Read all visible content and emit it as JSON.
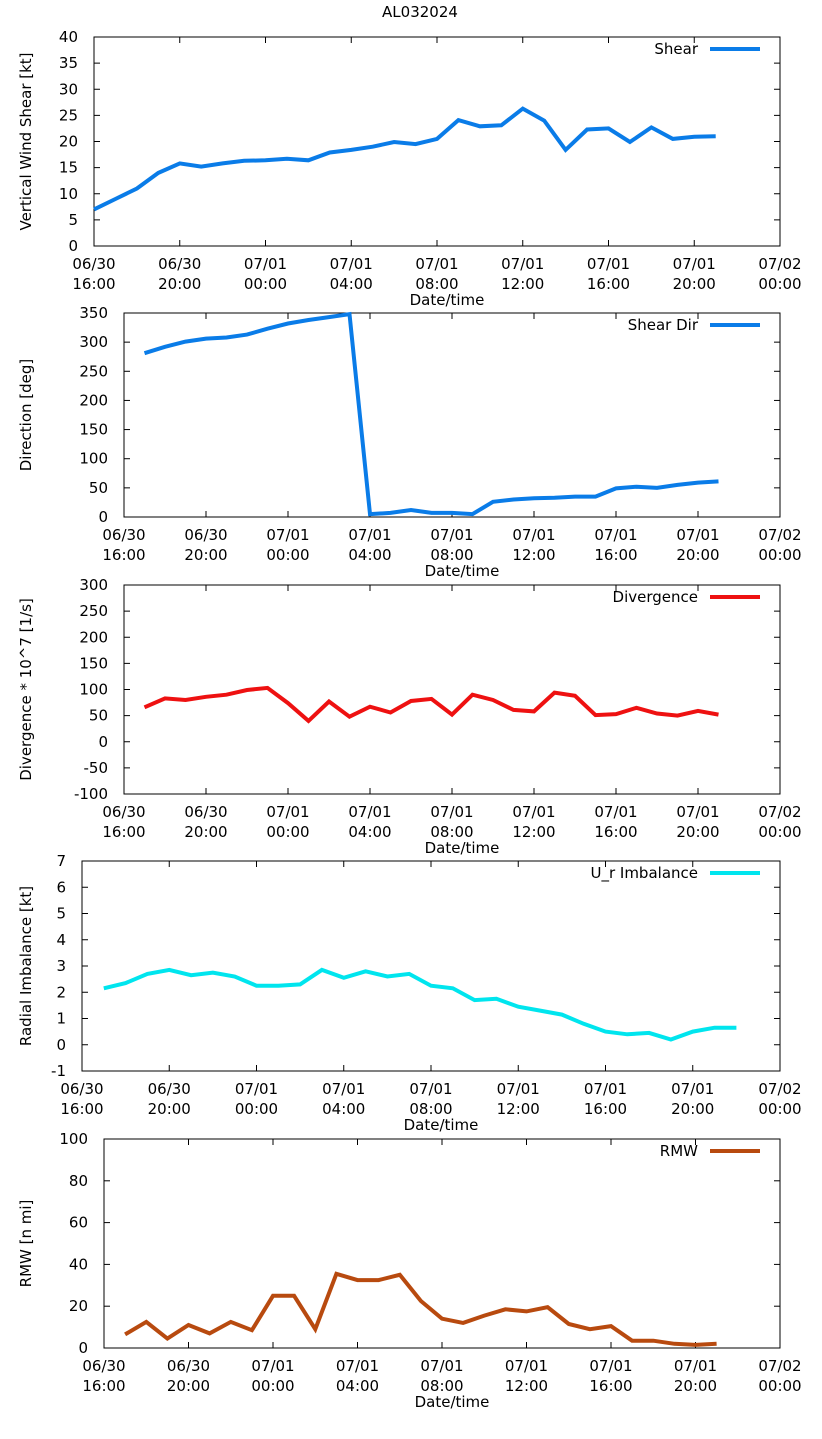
{
  "figure_title": "AL032024",
  "x_ticks": [
    {
      "hour": 0,
      "top": "06/30",
      "bottom": "16:00"
    },
    {
      "hour": 4,
      "top": "06/30",
      "bottom": "20:00"
    },
    {
      "hour": 8,
      "top": "07/01",
      "bottom": "00:00"
    },
    {
      "hour": 12,
      "top": "07/01",
      "bottom": "04:00"
    },
    {
      "hour": 16,
      "top": "07/01",
      "bottom": "08:00"
    },
    {
      "hour": 20,
      "top": "07/01",
      "bottom": "12:00"
    },
    {
      "hour": 24,
      "top": "07/01",
      "bottom": "16:00"
    },
    {
      "hour": 28,
      "top": "07/01",
      "bottom": "20:00"
    },
    {
      "hour": 32,
      "top": "07/02",
      "bottom": "00:00"
    }
  ],
  "chart_data": [
    {
      "type": "line",
      "title": "AL032024",
      "xlabel": "Date/time",
      "ylabel": "Vertical Wind Shear [kt]",
      "xunit": "hours since 06/30 16:00",
      "xlim": [
        0,
        32
      ],
      "ylim": [
        0,
        40
      ],
      "yticks": [
        0,
        5,
        10,
        15,
        20,
        25,
        30,
        35,
        40
      ],
      "legend": "top-right",
      "series": [
        {
          "name": "Shear",
          "color": "#0a7ce8",
          "x": [
            0,
            1,
            2,
            3,
            4,
            5,
            6,
            7,
            8,
            9,
            10,
            11,
            12,
            13,
            14,
            15,
            16,
            17,
            18,
            19,
            20,
            21,
            22,
            23,
            24,
            25,
            26,
            27,
            28,
            29
          ],
          "y": [
            7,
            9,
            11,
            14,
            15.8,
            15.2,
            15.8,
            16.3,
            16.4,
            16.7,
            16.4,
            17.9,
            18.4,
            19,
            19.9,
            19.5,
            20.5,
            24.1,
            22.9,
            23.1,
            26.3,
            24,
            18.4,
            22.3,
            22.5,
            19.9,
            22.7,
            20.5,
            20.9,
            21
          ]
        }
      ]
    },
    {
      "type": "line",
      "xlabel": "Date/time",
      "ylabel": "Direction [deg]",
      "xunit": "hours since 06/30 16:00",
      "xlim": [
        0,
        32
      ],
      "ylim": [
        0,
        350
      ],
      "yticks": [
        0,
        50,
        100,
        150,
        200,
        250,
        300,
        350
      ],
      "legend": "top-right",
      "series": [
        {
          "name": "Shear Dir",
          "color": "#0a7ce8",
          "x": [
            1,
            2,
            3,
            4,
            5,
            6,
            7,
            8,
            9,
            10,
            11,
            12,
            13,
            14,
            15,
            16,
            17,
            18,
            19,
            20,
            21,
            22,
            23,
            24,
            25,
            26,
            27,
            28,
            29
          ],
          "y": [
            281,
            292,
            301,
            306,
            308,
            313,
            323,
            332,
            338,
            343,
            348,
            5,
            7,
            12,
            7,
            7,
            5,
            26,
            30,
            32,
            33,
            35,
            35,
            49,
            52,
            50,
            55,
            59,
            61
          ]
        }
      ]
    },
    {
      "type": "line",
      "xlabel": "Date/time",
      "ylabel": "Divergence * 10^7 [1/s]",
      "xunit": "hours since 06/30 16:00",
      "xlim": [
        0,
        32
      ],
      "ylim": [
        -100,
        300
      ],
      "yticks": [
        -100,
        -50,
        0,
        50,
        100,
        150,
        200,
        250,
        300
      ],
      "legend": "top-right",
      "series": [
        {
          "name": "Divergence",
          "color": "#ee1111",
          "x": [
            1,
            2,
            3,
            4,
            5,
            6,
            7,
            8,
            9,
            10,
            11,
            12,
            13,
            14,
            15,
            16,
            17,
            18,
            19,
            20,
            21,
            22,
            23,
            24,
            25,
            26,
            27,
            28,
            29
          ],
          "y": [
            66,
            83,
            80,
            86,
            90,
            99,
            103,
            74,
            40,
            77,
            48,
            67,
            56,
            78,
            82,
            52,
            90,
            80,
            61,
            58,
            94,
            88,
            51,
            53,
            65,
            54,
            50,
            59,
            52
          ]
        }
      ]
    },
    {
      "type": "line",
      "xlabel": "Date/time",
      "ylabel": "Radial Imbalance [kt]",
      "xunit": "hours since 06/30 16:00",
      "xlim": [
        0,
        32
      ],
      "ylim": [
        -1,
        7
      ],
      "yticks": [
        -1,
        0,
        1,
        2,
        3,
        4,
        5,
        6,
        7
      ],
      "legend": "top-right",
      "series": [
        {
          "name": "U_r Imbalance",
          "color": "#00e5ee",
          "x": [
            1,
            2,
            3,
            4,
            5,
            6,
            7,
            8,
            9,
            10,
            11,
            12,
            13,
            14,
            15,
            16,
            17,
            18,
            19,
            20,
            21,
            22,
            23,
            24,
            25,
            26,
            27,
            28,
            29,
            30
          ],
          "y": [
            2.15,
            2.35,
            2.7,
            2.85,
            2.65,
            2.75,
            2.6,
            2.25,
            2.25,
            2.3,
            2.85,
            2.55,
            2.8,
            2.6,
            2.7,
            2.25,
            2.15,
            1.7,
            1.75,
            1.45,
            1.3,
            1.15,
            0.8,
            0.5,
            0.4,
            0.45,
            0.2,
            0.5,
            0.65,
            0.65
          ]
        }
      ]
    },
    {
      "type": "line",
      "xlabel": "Date/time",
      "ylabel": "RMW [n mi]",
      "xunit": "hours since 06/30 16:00",
      "xlim": [
        0,
        32
      ],
      "ylim": [
        0,
        100
      ],
      "yticks": [
        0,
        20,
        40,
        60,
        80,
        100
      ],
      "legend": "top-right",
      "series": [
        {
          "name": "RMW",
          "color": "#b84a0f",
          "x": [
            1,
            2,
            3,
            4,
            5,
            6,
            7,
            8,
            9,
            10,
            11,
            12,
            13,
            14,
            15,
            16,
            17,
            18,
            19,
            20,
            21,
            22,
            23,
            24,
            25,
            26,
            27,
            28,
            29
          ],
          "y": [
            6.5,
            12.5,
            4.5,
            11,
            7,
            12.5,
            8.5,
            25,
            25,
            9,
            35.5,
            32.5,
            32.5,
            35,
            22.5,
            14,
            12,
            15.5,
            18.5,
            17.5,
            19.5,
            11.5,
            9,
            10.5,
            3.5,
            3.5,
            2,
            1.5,
            2
          ]
        }
      ]
    }
  ]
}
